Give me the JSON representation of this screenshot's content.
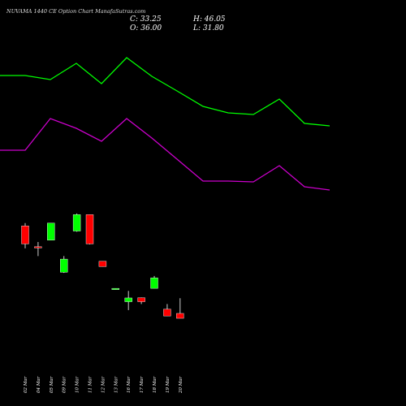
{
  "header": {
    "title": "NUVAMA 1440 CE Option Chart ManafaSutras.com",
    "close_label": "C:",
    "close_value": "33.25",
    "open_label": "O:",
    "open_value": "36.00",
    "high_label": "H:",
    "high_value": "46.05",
    "low_label": "L:",
    "low_value": "31.80"
  },
  "chart_data": {
    "type": "candlestick",
    "background": "#000000",
    "up_color": "#00ff00",
    "down_color": "#ff0000",
    "ylim": [
      18,
      69
    ],
    "categories": [
      "02 Mar",
      "04 Mar",
      "05 Mar",
      "09 Mar",
      "10 Mar",
      "11 Mar",
      "12 Mar",
      "13 Mar",
      "16 Mar",
      "17 Mar",
      "18 Mar",
      "19 Mar",
      "20 Mar"
    ],
    "candles": [
      {
        "open": 62.0,
        "high": 63.2,
        "low": 52.4,
        "close": 54.3
      },
      {
        "open": 53.1,
        "high": 55.1,
        "low": 49.1,
        "close": 52.7
      },
      {
        "open": 55.9,
        "high": 63.2,
        "low": 55.9,
        "close": 63.2
      },
      {
        "open": 42.2,
        "high": 49.1,
        "low": 41.9,
        "close": 47.8
      },
      {
        "open": 59.8,
        "high": 67.3,
        "low": 59.5,
        "close": 66.8
      },
      {
        "open": 66.8,
        "high": 66.8,
        "low": 54.1,
        "close": 54.3
      },
      {
        "open": 46.9,
        "high": 46.9,
        "low": 44.6,
        "close": 44.6
      },
      {
        "open": 35.0,
        "high": 35.3,
        "low": 34.8,
        "close": 35.3
      },
      {
        "open": 29.6,
        "high": 34.2,
        "low": 26.0,
        "close": 31.2
      },
      {
        "open": 31.3,
        "high": 31.4,
        "low": 28.6,
        "close": 29.6
      },
      {
        "open": 35.3,
        "high": 40.6,
        "low": 35.3,
        "close": 39.8
      },
      {
        "open": 26.4,
        "high": 28.6,
        "low": 23.5,
        "close": 23.5
      },
      {
        "open": 24.6,
        "high": 31.1,
        "low": 22.5,
        "close": 22.5
      }
    ],
    "overlay_lines": [
      {
        "color": "#00ff00",
        "values": [
          93,
          93,
          98,
          78,
          103,
          71,
          94,
          112,
          131,
          139,
          141,
          122,
          152,
          155
        ]
      },
      {
        "color": "#cc00cc",
        "values": [
          185,
          185,
          146,
          158,
          174,
          146,
          170,
          196,
          223,
          223,
          224,
          204,
          230,
          234
        ]
      }
    ]
  }
}
